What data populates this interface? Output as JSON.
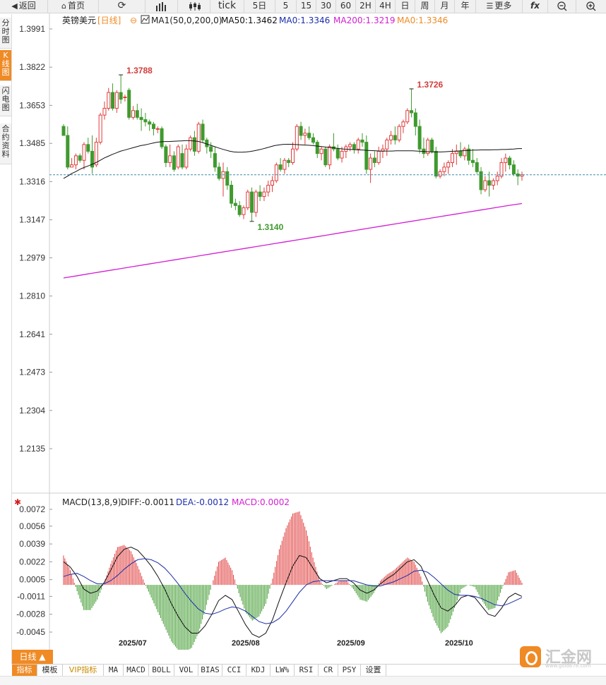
{
  "toolbar": {
    "back": "返回",
    "home": "首页",
    "tick": "tick",
    "periods": [
      "5日",
      "5",
      "15",
      "30",
      "60",
      "2H",
      "4H",
      "日",
      "周",
      "月",
      "年"
    ],
    "more": "更多",
    "fx": "fx"
  },
  "left_tabs": [
    {
      "label": "分时图",
      "active": false
    },
    {
      "label": "K线图",
      "active": true
    },
    {
      "label": "闪电图",
      "active": false
    },
    {
      "label": "合约资料",
      "active": false
    }
  ],
  "main_legend": {
    "symbol": "英镑美元",
    "period": "[日线]",
    "ma_label": "MA1(50,0,200,0)",
    "ma50": "MA50:1.3462",
    "ma0a": "MA0:1.3346",
    "ma200": "MA200:1.3219",
    "ma0b": "MA0:1.3346"
  },
  "macd_legend": {
    "name": "MACD(13,8,9)",
    "diff": "DIFF:-0.0011",
    "dea": "DEA:-0.0012",
    "macd": "MACD:0.0002"
  },
  "period_button": "日线 ▲",
  "bottom_tabs": [
    "指标",
    "模板",
    "VIP指标",
    "MA",
    "MACD",
    "BOLL",
    "VOL",
    "BIAS",
    "CCI",
    "KDJ",
    "LW%",
    "RSI",
    "CR",
    "PSY",
    "设置"
  ],
  "logo": {
    "text": "汇金网",
    "url": "www.gold678.com"
  },
  "colors": {
    "up": "#e03c3c",
    "down": "#3f9a2e",
    "ma50": "#111111",
    "ma200": "#d21ed2",
    "current": "#3a8ca8",
    "accent": "#f08a24"
  },
  "chart_data": [
    {
      "type": "candlestick",
      "title": "英镑美元 [日线]",
      "x_labels": [
        "2025/07",
        "2025/08",
        "2025/09",
        "2025/10"
      ],
      "y_ticks": [
        "1.3991",
        "1.3822",
        "1.3653",
        "1.3485",
        "1.3316",
        "1.3147",
        "1.2979",
        "1.2810",
        "1.2641",
        "1.2473",
        "1.2304",
        "1.2135"
      ],
      "ylim": [
        1.2,
        1.4
      ],
      "current_price": 1.3346,
      "annotations": [
        {
          "label": "1.3788",
          "value": 1.3788,
          "index": 14,
          "kind": "high"
        },
        {
          "label": "1.3140",
          "value": 1.314,
          "index": 46,
          "kind": "low"
        },
        {
          "label": "1.3726",
          "value": 1.3726,
          "index": 85,
          "kind": "high"
        }
      ],
      "candles": [
        [
          1.356,
          1.357,
          1.352,
          1.352
        ],
        [
          1.352,
          1.356,
          1.337,
          1.338
        ],
        [
          1.338,
          1.342,
          1.338,
          1.339
        ],
        [
          1.339,
          1.344,
          1.337,
          1.343
        ],
        [
          1.343,
          1.344,
          1.34,
          1.341
        ],
        [
          1.341,
          1.349,
          1.337,
          1.348
        ],
        [
          1.348,
          1.351,
          1.344,
          1.345
        ],
        [
          1.345,
          1.352,
          1.335,
          1.338
        ],
        [
          1.339,
          1.351,
          1.338,
          1.349
        ],
        [
          1.349,
          1.362,
          1.348,
          1.361
        ],
        [
          1.361,
          1.367,
          1.359,
          1.364
        ],
        [
          1.364,
          1.373,
          1.363,
          1.371
        ],
        [
          1.371,
          1.375,
          1.363,
          1.364
        ],
        [
          1.364,
          1.372,
          1.362,
          1.371
        ],
        [
          1.371,
          1.3788,
          1.366,
          1.368
        ],
        [
          1.369,
          1.37,
          1.367,
          1.369
        ],
        [
          1.372,
          1.373,
          1.359,
          1.36
        ],
        [
          1.36,
          1.365,
          1.359,
          1.363
        ],
        [
          1.363,
          1.366,
          1.359,
          1.36
        ],
        [
          1.36,
          1.364,
          1.354,
          1.359
        ],
        [
          1.359,
          1.362,
          1.356,
          1.358
        ],
        [
          1.358,
          1.359,
          1.354,
          1.357
        ],
        [
          1.357,
          1.358,
          1.352,
          1.355
        ],
        [
          1.355,
          1.356,
          1.353,
          1.355
        ],
        [
          1.355,
          1.356,
          1.346,
          1.347
        ],
        [
          1.347,
          1.348,
          1.338,
          1.34
        ],
        [
          1.34,
          1.348,
          1.338,
          1.343
        ],
        [
          1.343,
          1.345,
          1.336,
          1.337
        ],
        [
          1.338,
          1.348,
          1.337,
          1.347
        ],
        [
          1.344,
          1.348,
          1.337,
          1.338
        ],
        [
          1.338,
          1.348,
          1.337,
          1.346
        ],
        [
          1.346,
          1.352,
          1.345,
          1.351
        ],
        [
          1.351,
          1.354,
          1.343,
          1.345
        ],
        [
          1.345,
          1.358,
          1.344,
          1.357
        ],
        [
          1.357,
          1.359,
          1.349,
          1.35
        ],
        [
          1.35,
          1.351,
          1.344,
          1.347
        ],
        [
          1.347,
          1.349,
          1.342,
          1.345
        ],
        [
          1.344,
          1.347,
          1.336,
          1.338
        ],
        [
          1.338,
          1.34,
          1.332,
          1.333
        ],
        [
          1.333,
          1.34,
          1.325,
          1.336
        ],
        [
          1.336,
          1.338,
          1.328,
          1.33
        ],
        [
          1.33,
          1.332,
          1.32,
          1.322
        ],
        [
          1.322,
          1.324,
          1.319,
          1.321
        ],
        [
          1.321,
          1.323,
          1.316,
          1.317
        ],
        [
          1.317,
          1.321,
          1.315,
          1.32
        ],
        [
          1.32,
          1.328,
          1.319,
          1.327
        ],
        [
          1.327,
          1.329,
          1.314,
          1.318
        ],
        [
          1.318,
          1.328,
          1.316,
          1.327
        ],
        [
          1.327,
          1.33,
          1.323,
          1.325
        ],
        [
          1.325,
          1.329,
          1.323,
          1.327
        ],
        [
          1.327,
          1.332,
          1.325,
          1.33
        ],
        [
          1.33,
          1.334,
          1.327,
          1.332
        ],
        [
          1.332,
          1.34,
          1.331,
          1.339
        ],
        [
          1.339,
          1.342,
          1.336,
          1.337
        ],
        [
          1.337,
          1.342,
          1.335,
          1.341
        ],
        [
          1.341,
          1.342,
          1.338,
          1.34
        ],
        [
          1.34,
          1.349,
          1.339,
          1.346
        ],
        [
          1.346,
          1.357,
          1.345,
          1.356
        ],
        [
          1.356,
          1.358,
          1.35,
          1.352
        ],
        [
          1.352,
          1.355,
          1.348,
          1.353
        ],
        [
          1.353,
          1.356,
          1.35,
          1.351
        ],
        [
          1.351,
          1.353,
          1.348,
          1.349
        ],
        [
          1.349,
          1.35,
          1.342,
          1.344
        ],
        [
          1.344,
          1.347,
          1.341,
          1.346
        ],
        [
          1.346,
          1.347,
          1.338,
          1.339
        ],
        [
          1.339,
          1.348,
          1.337,
          1.347
        ],
        [
          1.347,
          1.353,
          1.345,
          1.346
        ],
        [
          1.346,
          1.348,
          1.341,
          1.342
        ],
        [
          1.342,
          1.347,
          1.34,
          1.345
        ],
        [
          1.345,
          1.348,
          1.342,
          1.347
        ],
        [
          1.347,
          1.349,
          1.345,
          1.348
        ],
        [
          1.348,
          1.349,
          1.344,
          1.346
        ],
        [
          1.346,
          1.351,
          1.344,
          1.35
        ],
        [
          1.35,
          1.353,
          1.347,
          1.349
        ],
        [
          1.349,
          1.352,
          1.335,
          1.337
        ],
        [
          1.337,
          1.344,
          1.331,
          1.342
        ],
        [
          1.342,
          1.345,
          1.338,
          1.34
        ],
        [
          1.34,
          1.347,
          1.339,
          1.345
        ],
        [
          1.345,
          1.348,
          1.342,
          1.346
        ],
        [
          1.346,
          1.351,
          1.343,
          1.35
        ],
        [
          1.35,
          1.354,
          1.348,
          1.352
        ],
        [
          1.352,
          1.356,
          1.348,
          1.35
        ],
        [
          1.35,
          1.357,
          1.349,
          1.356
        ],
        [
          1.356,
          1.359,
          1.353,
          1.358
        ],
        [
          1.358,
          1.364,
          1.357,
          1.363
        ],
        [
          1.363,
          1.3726,
          1.36,
          1.362
        ],
        [
          1.362,
          1.364,
          1.352,
          1.356
        ],
        [
          1.356,
          1.359,
          1.344,
          1.346
        ],
        [
          1.346,
          1.351,
          1.342,
          1.344
        ],
        [
          1.344,
          1.351,
          1.343,
          1.35
        ],
        [
          1.35,
          1.351,
          1.344,
          1.345
        ],
        [
          1.345,
          1.347,
          1.333,
          1.334
        ],
        [
          1.334,
          1.337,
          1.333,
          1.336
        ],
        [
          1.336,
          1.34,
          1.334,
          1.338
        ],
        [
          1.338,
          1.341,
          1.335,
          1.34
        ],
        [
          1.34,
          1.346,
          1.338,
          1.344
        ],
        [
          1.344,
          1.348,
          1.339,
          1.345
        ],
        [
          1.345,
          1.349,
          1.342,
          1.343
        ],
        [
          1.343,
          1.347,
          1.341,
          1.346
        ],
        [
          1.346,
          1.348,
          1.339,
          1.341
        ],
        [
          1.341,
          1.346,
          1.338,
          1.34
        ],
        [
          1.34,
          1.342,
          1.335,
          1.336
        ],
        [
          1.336,
          1.338,
          1.326,
          1.328
        ],
        [
          1.328,
          1.334,
          1.327,
          1.332
        ],
        [
          1.332,
          1.336,
          1.325,
          1.33
        ],
        [
          1.33,
          1.333,
          1.328,
          1.332
        ],
        [
          1.332,
          1.336,
          1.33,
          1.334
        ],
        [
          1.334,
          1.342,
          1.333,
          1.34
        ],
        [
          1.34,
          1.344,
          1.336,
          1.342
        ],
        [
          1.342,
          1.343,
          1.337,
          1.339
        ],
        [
          1.339,
          1.341,
          1.334,
          1.335
        ],
        [
          1.335,
          1.337,
          1.33,
          1.334
        ],
        [
          1.334,
          1.336,
          1.332,
          1.3346
        ]
      ],
      "ma50": [
        1.333,
        1.334,
        1.3352,
        1.336,
        1.337,
        1.3378,
        1.3385,
        1.3392,
        1.34,
        1.341,
        1.342,
        1.3428,
        1.3436,
        1.3443,
        1.345,
        1.3455,
        1.346,
        1.3465,
        1.347,
        1.3475,
        1.3478,
        1.3482,
        1.3486,
        1.349,
        1.3492,
        1.3493,
        1.3493,
        1.3494,
        1.3495,
        1.3496,
        1.3497,
        1.3497,
        1.3496,
        1.3494,
        1.349,
        1.3484,
        1.3478,
        1.3472,
        1.3466,
        1.346,
        1.3455,
        1.345,
        1.3447,
        1.3446,
        1.3446,
        1.3447,
        1.3449,
        1.3452,
        1.3456,
        1.346,
        1.3465,
        1.347,
        1.3475,
        1.3478,
        1.348,
        1.3481,
        1.3481,
        1.348,
        1.3479,
        1.3478,
        1.3477,
        1.3476,
        1.3474,
        1.3472,
        1.347,
        1.3468,
        1.3466,
        1.3464,
        1.3462,
        1.346,
        1.3459,
        1.3458,
        1.3457,
        1.3456,
        1.3455,
        1.3454,
        1.3453,
        1.3452,
        1.3451,
        1.3451,
        1.3451,
        1.3451,
        1.3452,
        1.3452,
        1.3452,
        1.3452,
        1.3452,
        1.3451,
        1.345,
        1.3449,
        1.3448,
        1.3447,
        1.3447,
        1.3447,
        1.3448,
        1.3449,
        1.345,
        1.3451,
        1.3452,
        1.3453,
        1.3454,
        1.3455,
        1.3455,
        1.3456,
        1.3456,
        1.3456,
        1.3457,
        1.3457,
        1.3458,
        1.3458,
        1.3459,
        1.346,
        1.3462,
        1.3462
      ],
      "ma200": [
        1.289,
        1.29,
        1.291,
        1.292,
        1.293,
        1.294,
        1.295,
        1.296,
        1.297,
        1.298,
        1.299,
        1.3,
        1.301,
        1.302,
        1.303,
        1.304,
        1.305,
        1.306,
        1.307,
        1.308,
        1.309,
        1.31,
        1.311,
        1.312,
        1.313,
        1.314,
        1.315,
        1.316,
        1.317,
        1.318,
        1.319,
        1.32,
        1.321,
        1.3219
      ]
    },
    {
      "type": "macd",
      "title": "MACD(13,8,9)",
      "y_ticks": [
        "0.0072",
        "0.0056",
        "0.0039",
        "0.0022",
        "0.0005",
        "-0.0011",
        "-0.0028",
        "-0.0045"
      ],
      "ylim": [
        -0.0062,
        0.008
      ],
      "diff": [
        0.0022,
        0.0017,
        0.0008,
        -0.0004,
        -0.0008,
        -0.0006,
        0.0002,
        0.0014,
        0.0027,
        0.0034,
        0.0036,
        0.0033,
        0.0026,
        0.0018,
        0.0008,
        -0.0004,
        -0.0018,
        -0.003,
        -0.004,
        -0.0046,
        -0.0046,
        -0.0039,
        -0.0028,
        -0.0015,
        -0.001,
        -0.0014,
        -0.0026,
        -0.0038,
        -0.0047,
        -0.005,
        -0.0046,
        -0.0033,
        -0.0015,
        0.0002,
        0.0018,
        0.0028,
        0.0026,
        0.0016,
        0.0006,
        0.0002,
        0.0004,
        0.0006,
        0.0006,
        0.0002,
        -0.0005,
        -0.0008,
        -0.0005,
        0.0001,
        0.0006,
        0.001,
        0.0016,
        0.0022,
        0.0024,
        0.0018,
        0.0004,
        -0.001,
        -0.0022,
        -0.0025,
        -0.002,
        -0.0012,
        -0.001,
        -0.0012,
        -0.002,
        -0.0028,
        -0.003,
        -0.0022,
        -0.0012,
        -0.0008,
        -0.0011
      ],
      "dea": [
        0.0008,
        0.001,
        0.0011,
        0.0008,
        0.0004,
        0.0001,
        0.0001,
        0.0004,
        0.0009,
        0.0015,
        0.002,
        0.0024,
        0.0025,
        0.0024,
        0.0021,
        0.0016,
        0.0009,
        0.0001,
        -0.0008,
        -0.0016,
        -0.0023,
        -0.0027,
        -0.0028,
        -0.0026,
        -0.0023,
        -0.0021,
        -0.0022,
        -0.0025,
        -0.003,
        -0.0035,
        -0.0037,
        -0.0036,
        -0.0032,
        -0.0025,
        -0.0016,
        -0.0007,
        0.0,
        0.0003,
        0.0004,
        0.0004,
        0.0004,
        0.0004,
        0.0004,
        0.0004,
        0.0002,
        0.0,
        -0.0001,
        -0.0001,
        0.0001,
        0.0003,
        0.0006,
        0.0009,
        0.0013,
        0.0014,
        0.0012,
        0.0007,
        0.0001,
        -0.0005,
        -0.0009,
        -0.001,
        -0.001,
        -0.0011,
        -0.0013,
        -0.0016,
        -0.0019,
        -0.002,
        -0.0018,
        -0.0015,
        -0.0012
      ]
    }
  ]
}
